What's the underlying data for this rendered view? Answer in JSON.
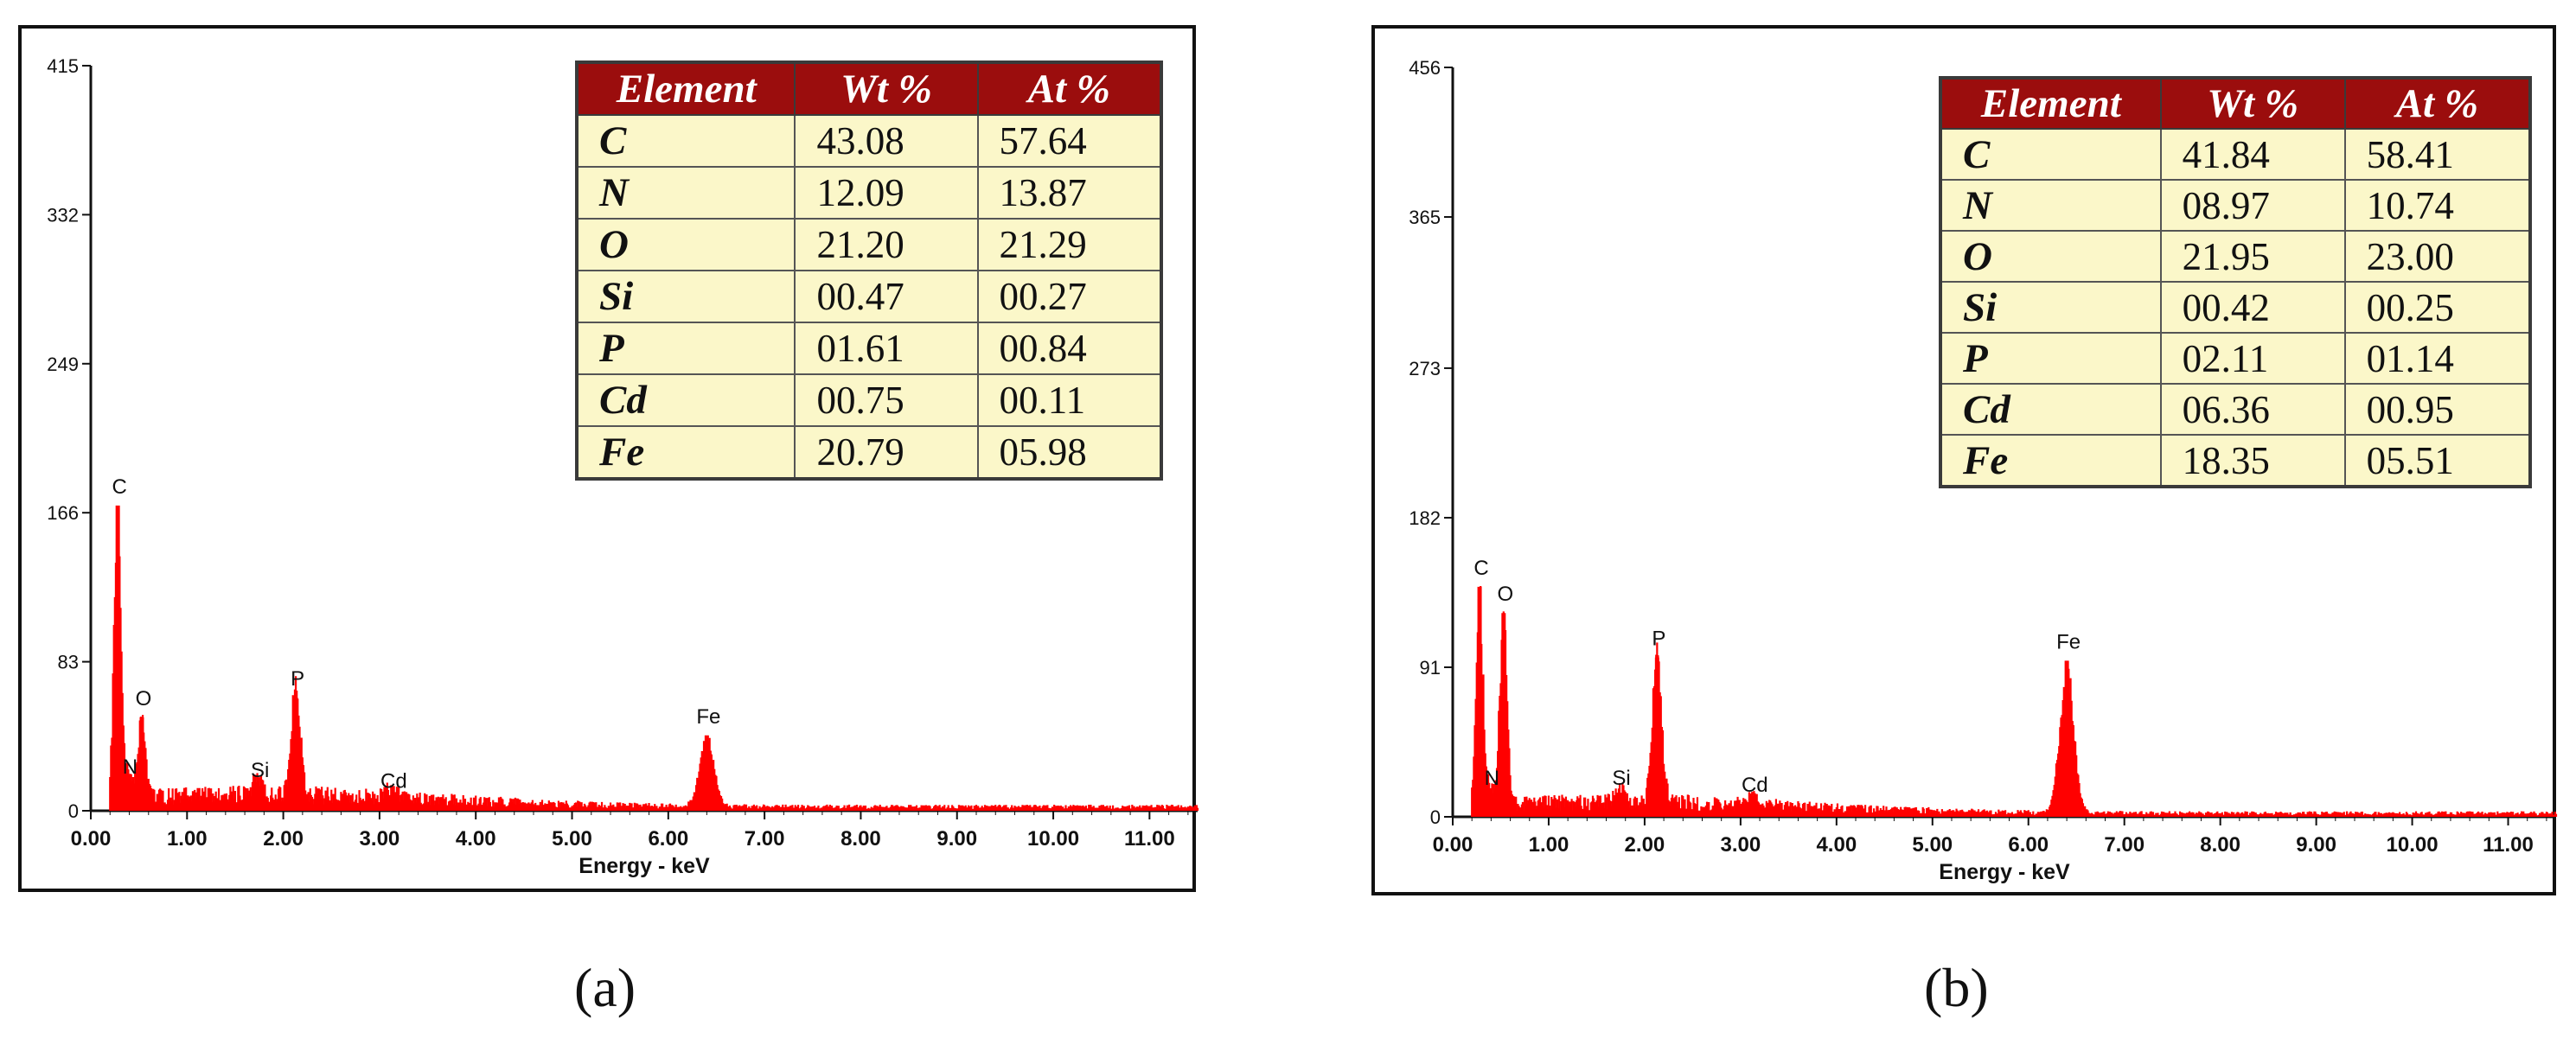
{
  "chart_data": [
    {
      "type": "bar",
      "panel_label": "a",
      "xlabel": "Energy - keV",
      "xlim": [
        0,
        11.5
      ],
      "xticks": [
        "0.00",
        "1.00",
        "2.00",
        "3.00",
        "4.00",
        "5.00",
        "6.00",
        "7.00",
        "8.00",
        "9.00",
        "10.00",
        "11.00"
      ],
      "ylim": [
        0,
        415
      ],
      "yticks": [
        "0",
        "83",
        "166",
        "249",
        "332",
        "415"
      ],
      "series_color": "#ff0000",
      "peaks": [
        {
          "label": "C",
          "energy": 0.28,
          "counts": 170
        },
        {
          "label": "N",
          "energy": 0.39,
          "counts": 14
        },
        {
          "label": "O",
          "energy": 0.53,
          "counts": 52
        },
        {
          "label": "Si",
          "energy": 1.74,
          "counts": 12
        },
        {
          "label": "P",
          "energy": 2.13,
          "counts": 63
        },
        {
          "label": "Cd",
          "energy": 3.13,
          "counts": 6
        },
        {
          "label": "Fe",
          "energy": 6.4,
          "counts": 42
        }
      ],
      "table": {
        "headers": [
          "Element",
          "Wt %",
          "At %"
        ],
        "rows": [
          [
            "C",
            "43.08",
            "57.64"
          ],
          [
            "N",
            "12.09",
            "13.87"
          ],
          [
            "O",
            "21.20",
            "21.29"
          ],
          [
            "Si",
            "00.47",
            "00.27"
          ],
          [
            "P",
            "01.61",
            "00.84"
          ],
          [
            "Cd",
            "00.75",
            "00.11"
          ],
          [
            "Fe",
            "20.79",
            "05.98"
          ]
        ]
      }
    },
    {
      "type": "bar",
      "panel_label": "b",
      "xlabel": "Energy - keV",
      "xlim": [
        0,
        11.5
      ],
      "xticks": [
        "0.00",
        "1.00",
        "2.00",
        "3.00",
        "4.00",
        "5.00",
        "6.00",
        "7.00",
        "8.00",
        "9.00",
        "10.00",
        "11.00"
      ],
      "ylim": [
        0,
        456
      ],
      "yticks": [
        "0",
        "91",
        "182",
        "273",
        "365",
        "456"
      ],
      "series_color": "#ff0000",
      "peaks": [
        {
          "label": "C",
          "energy": 0.28,
          "counts": 140
        },
        {
          "label": "N",
          "energy": 0.39,
          "counts": 12
        },
        {
          "label": "O",
          "energy": 0.53,
          "counts": 124
        },
        {
          "label": "Si",
          "energy": 1.74,
          "counts": 12
        },
        {
          "label": "P",
          "energy": 2.13,
          "counts": 97
        },
        {
          "label": "Cd",
          "energy": 3.13,
          "counts": 8
        },
        {
          "label": "Fe",
          "energy": 6.4,
          "counts": 95
        }
      ],
      "table": {
        "headers": [
          "Element",
          "Wt %",
          "At %"
        ],
        "rows": [
          [
            "C",
            "41.84",
            "58.41"
          ],
          [
            "N",
            "08.97",
            "10.74"
          ],
          [
            "O",
            "21.95",
            "23.00"
          ],
          [
            "Si",
            "00.42",
            "00.25"
          ],
          [
            "P",
            "02.11",
            "01.14"
          ],
          [
            "Cd",
            "06.36",
            "00.95"
          ],
          [
            "Fe",
            "18.35",
            "05.51"
          ]
        ]
      }
    }
  ],
  "captions": {
    "a": "(a)",
    "b": "(b)"
  }
}
